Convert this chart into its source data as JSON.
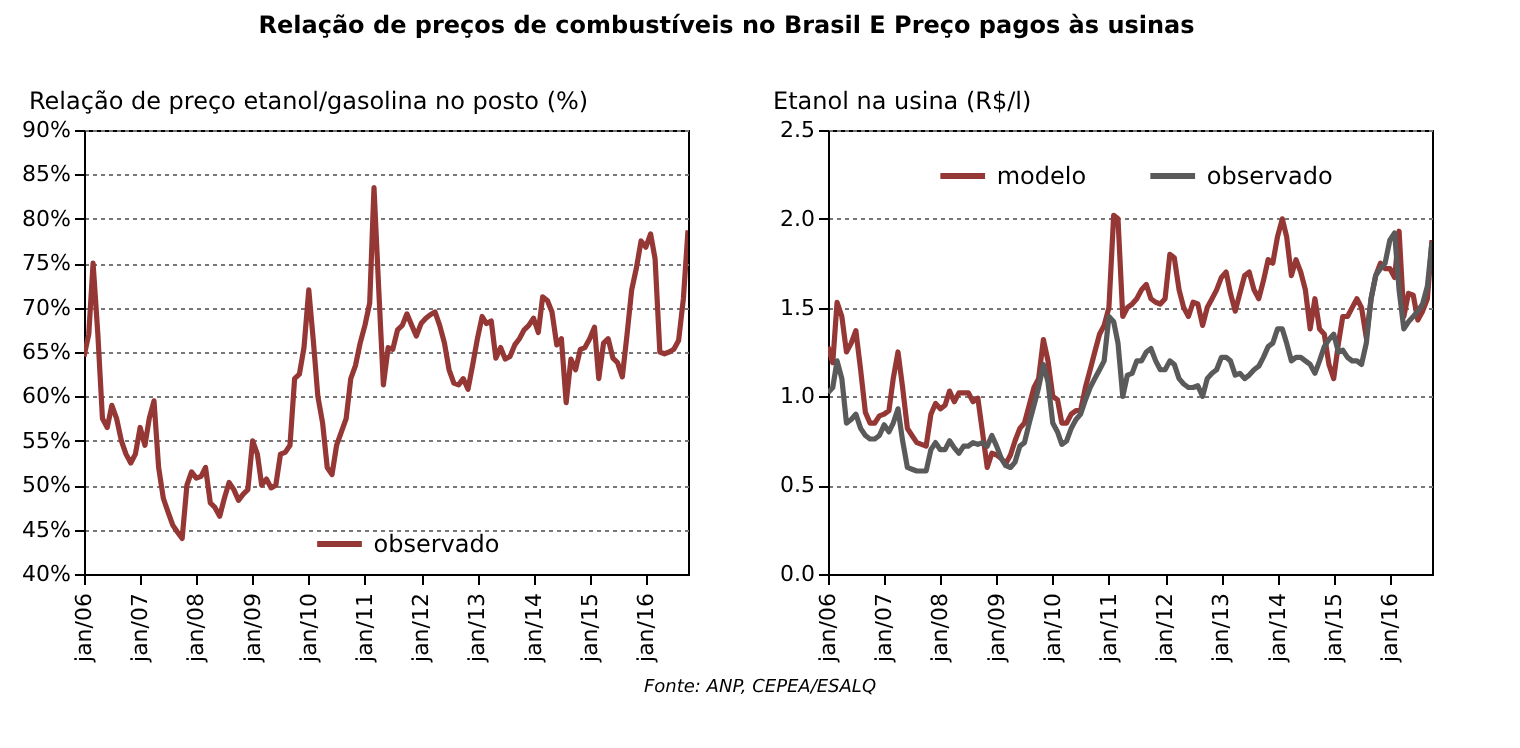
{
  "chart_data": [
    {
      "type": "line",
      "title": "Relação de preços de combustíveis no Brasil E Preço pagos às usinas",
      "ylabel": "Relação de preço etanol/gasolina  no posto (%)",
      "annotations": [
        "Fonte: ANP, CEPEA/ESALQ"
      ],
      "x": [
        "2006-01",
        "2006-02",
        "2006-03",
        "2006-04",
        "2006-05",
        "2006-06",
        "2006-07",
        "2006-08",
        "2006-09",
        "2006-10",
        "2006-11",
        "2006-12",
        "2007-01",
        "2007-02",
        "2007-03",
        "2007-04",
        "2007-05",
        "2007-06",
        "2007-07",
        "2007-08",
        "2007-09",
        "2007-10",
        "2007-11",
        "2007-12",
        "2008-01",
        "2008-02",
        "2008-03",
        "2008-04",
        "2008-05",
        "2008-06",
        "2008-07",
        "2008-08",
        "2008-09",
        "2008-10",
        "2008-11",
        "2008-12",
        "2009-01",
        "2009-02",
        "2009-03",
        "2009-04",
        "2009-05",
        "2009-06",
        "2009-07",
        "2009-08",
        "2009-09",
        "2009-10",
        "2009-11",
        "2009-12",
        "2010-01",
        "2010-02",
        "2010-03",
        "2010-04",
        "2010-05",
        "2010-06",
        "2010-07",
        "2010-08",
        "2010-09",
        "2010-10",
        "2010-11",
        "2010-12",
        "2011-01",
        "2011-02",
        "2011-03",
        "2011-04",
        "2011-05",
        "2011-06",
        "2011-07",
        "2011-08",
        "2011-09",
        "2011-10",
        "2011-11",
        "2011-12",
        "2012-01",
        "2012-02",
        "2012-03",
        "2012-04",
        "2012-05",
        "2012-06",
        "2012-07",
        "2012-08",
        "2012-09",
        "2012-10",
        "2012-11",
        "2012-12",
        "2013-01",
        "2013-02",
        "2013-03",
        "2013-04",
        "2013-05",
        "2013-06",
        "2013-07",
        "2013-08",
        "2013-09",
        "2013-10",
        "2013-11",
        "2013-12",
        "2014-01",
        "2014-02",
        "2014-03",
        "2014-04",
        "2014-05",
        "2014-06",
        "2014-07",
        "2014-08",
        "2014-09",
        "2014-10",
        "2014-11",
        "2014-12",
        "2015-01",
        "2015-02",
        "2015-03",
        "2015-04",
        "2015-05",
        "2015-06",
        "2015-07",
        "2015-08",
        "2015-09",
        "2015-10",
        "2015-11",
        "2015-12",
        "2016-01",
        "2016-02",
        "2016-03",
        "2016-04",
        "2016-05",
        "2016-06",
        "2016-07",
        "2016-08",
        "2016-09",
        "2016-10"
      ],
      "series": [
        {
          "name": "observado",
          "color": "#953735",
          "values": [
            64.5,
            67,
            75,
            67,
            57.5,
            56.5,
            59,
            57.5,
            55,
            53.5,
            52.5,
            53.5,
            56.5,
            54.5,
            57.5,
            59.5,
            52,
            48.5,
            47,
            45.5,
            44.7,
            44,
            50,
            51.5,
            50.8,
            51,
            52,
            48,
            47.5,
            46.5,
            48.5,
            50.3,
            49.5,
            48.3,
            49,
            49.5,
            55,
            53.5,
            50,
            50.7,
            49.7,
            50,
            53.5,
            53.7,
            54.5,
            62,
            62.5,
            65.5,
            72,
            66,
            60,
            57,
            52,
            51.2,
            54.5,
            56,
            57.5,
            62,
            63.5,
            66,
            68,
            70.5,
            83.5,
            72,
            61.3,
            65.5,
            65.3,
            67.5,
            68,
            69.3,
            68,
            66.8,
            68.2,
            68.8,
            69.2,
            69.5,
            68,
            66,
            63,
            61.5,
            61.3,
            62,
            60.8,
            63.5,
            66.5,
            69,
            68.2,
            68.5,
            64.3,
            65.5,
            64.2,
            64.5,
            65.8,
            66.5,
            67.5,
            68,
            68.8,
            67.2,
            71.2,
            70.8,
            69.5,
            65.8,
            66.5,
            59.3,
            64.2,
            63,
            65.3,
            65.5,
            66.5,
            67.8,
            62,
            66,
            66.5,
            64.3,
            63.8,
            62.2,
            67,
            72,
            74.5,
            77.5,
            76.8,
            78.3,
            75.5,
            65,
            64.8,
            65,
            65.3,
            66.3,
            71,
            78.7
          ]
        }
      ],
      "xlim": [
        "2006-01",
        "2016-10"
      ],
      "xticks": [
        {
          "value": "2006-01",
          "label": "jan/06"
        },
        {
          "value": "2007-01",
          "label": "jan/07"
        },
        {
          "value": "2008-01",
          "label": "jan/08"
        },
        {
          "value": "2009-01",
          "label": "jan/09"
        },
        {
          "value": "2010-01",
          "label": "jan/10"
        },
        {
          "value": "2011-01",
          "label": "jan/11"
        },
        {
          "value": "2012-01",
          "label": "jan/12"
        },
        {
          "value": "2013-01",
          "label": "jan/13"
        },
        {
          "value": "2014-01",
          "label": "jan/14"
        },
        {
          "value": "2015-01",
          "label": "jan/15"
        },
        {
          "value": "2016-01",
          "label": "jan/16"
        }
      ],
      "ylim": [
        40,
        90
      ],
      "yticks": [
        {
          "value": 40,
          "label": "40%"
        },
        {
          "value": 45,
          "label": "45%"
        },
        {
          "value": 50,
          "label": "50%"
        },
        {
          "value": 55,
          "label": "55%"
        },
        {
          "value": 60,
          "label": "60%"
        },
        {
          "value": 65,
          "label": "65%"
        },
        {
          "value": 70,
          "label": "70%"
        },
        {
          "value": 75,
          "label": "75%"
        },
        {
          "value": 80,
          "label": "80%"
        },
        {
          "value": 85,
          "label": "85%"
        },
        {
          "value": 90,
          "label": "90%"
        }
      ],
      "grid": "y",
      "legend": "bottom"
    },
    {
      "type": "line",
      "ylabel": "Etanol na usina  (R$/l)",
      "x": [
        "2006-01",
        "2006-02",
        "2006-03",
        "2006-04",
        "2006-05",
        "2006-06",
        "2006-07",
        "2006-08",
        "2006-09",
        "2006-10",
        "2006-11",
        "2006-12",
        "2007-01",
        "2007-02",
        "2007-03",
        "2007-04",
        "2007-05",
        "2007-06",
        "2007-07",
        "2007-08",
        "2007-09",
        "2007-10",
        "2007-11",
        "2007-12",
        "2008-01",
        "2008-02",
        "2008-03",
        "2008-04",
        "2008-05",
        "2008-06",
        "2008-07",
        "2008-08",
        "2008-09",
        "2008-10",
        "2008-11",
        "2008-12",
        "2009-01",
        "2009-02",
        "2009-03",
        "2009-04",
        "2009-05",
        "2009-06",
        "2009-07",
        "2009-08",
        "2009-09",
        "2009-10",
        "2009-11",
        "2009-12",
        "2010-01",
        "2010-02",
        "2010-03",
        "2010-04",
        "2010-05",
        "2010-06",
        "2010-07",
        "2010-08",
        "2010-09",
        "2010-10",
        "2010-11",
        "2010-12",
        "2011-01",
        "2011-02",
        "2011-03",
        "2011-04",
        "2011-05",
        "2011-06",
        "2011-07",
        "2011-08",
        "2011-09",
        "2011-10",
        "2011-11",
        "2011-12",
        "2012-01",
        "2012-02",
        "2012-03",
        "2012-04",
        "2012-05",
        "2012-06",
        "2012-07",
        "2012-08",
        "2012-09",
        "2012-10",
        "2012-11",
        "2012-12",
        "2013-01",
        "2013-02",
        "2013-03",
        "2013-04",
        "2013-05",
        "2013-06",
        "2013-07",
        "2013-08",
        "2013-09",
        "2013-10",
        "2013-11",
        "2013-12",
        "2014-01",
        "2014-02",
        "2014-03",
        "2014-04",
        "2014-05",
        "2014-06",
        "2014-07",
        "2014-08",
        "2014-09",
        "2014-10",
        "2014-11",
        "2014-12",
        "2015-01",
        "2015-02",
        "2015-03",
        "2015-04",
        "2015-05",
        "2015-06",
        "2015-07",
        "2015-08",
        "2015-09",
        "2015-10",
        "2015-11",
        "2015-12",
        "2016-01",
        "2016-02",
        "2016-03",
        "2016-04",
        "2016-05",
        "2016-06",
        "2016-07",
        "2016-08",
        "2016-09",
        "2016-10"
      ],
      "series": [
        {
          "name": "modelo",
          "color": "#953735",
          "values": [
            1.28,
            1.19,
            1.53,
            1.45,
            1.25,
            1.3,
            1.37,
            1.15,
            0.91,
            0.85,
            0.85,
            0.89,
            0.9,
            0.92,
            1.1,
            1.25,
            1.05,
            0.82,
            0.78,
            0.74,
            0.73,
            0.72,
            0.9,
            0.96,
            0.93,
            0.95,
            1.03,
            0.97,
            1.02,
            1.02,
            1.02,
            0.97,
            0.99,
            0.8,
            0.6,
            0.68,
            0.67,
            0.65,
            0.62,
            0.67,
            0.75,
            0.82,
            0.85,
            0.95,
            1.05,
            1.1,
            1.32,
            1.2,
            1.0,
            0.98,
            0.85,
            0.85,
            0.9,
            0.92,
            0.92,
            1.05,
            1.15,
            1.25,
            1.35,
            1.4,
            1.5,
            2.02,
            2.0,
            1.45,
            1.5,
            1.52,
            1.55,
            1.6,
            1.63,
            1.55,
            1.53,
            1.52,
            1.55,
            1.8,
            1.78,
            1.6,
            1.5,
            1.45,
            1.53,
            1.52,
            1.4,
            1.5,
            1.55,
            1.6,
            1.67,
            1.7,
            1.58,
            1.48,
            1.58,
            1.68,
            1.7,
            1.6,
            1.55,
            1.65,
            1.77,
            1.75,
            1.9,
            2.0,
            1.9,
            1.68,
            1.77,
            1.7,
            1.6,
            1.38,
            1.55,
            1.38,
            1.35,
            1.18,
            1.1,
            1.3,
            1.45,
            1.45,
            1.5,
            1.55,
            1.5,
            1.33,
            1.55,
            1.68,
            1.75,
            1.72,
            1.72,
            1.67,
            1.93,
            1.45,
            1.58,
            1.57,
            1.43,
            1.48,
            1.55,
            1.88
          ]
        },
        {
          "name": "observado",
          "color": "#5a5a5a",
          "values": [
            1.02,
            1.05,
            1.2,
            1.1,
            0.85,
            0.87,
            0.9,
            0.82,
            0.78,
            0.76,
            0.76,
            0.78,
            0.84,
            0.8,
            0.85,
            0.93,
            0.75,
            0.6,
            0.59,
            0.58,
            0.58,
            0.58,
            0.7,
            0.74,
            0.7,
            0.7,
            0.75,
            0.71,
            0.68,
            0.72,
            0.72,
            0.74,
            0.73,
            0.74,
            0.72,
            0.78,
            0.72,
            0.65,
            0.61,
            0.6,
            0.63,
            0.72,
            0.74,
            0.85,
            0.95,
            1.05,
            1.18,
            1.08,
            0.85,
            0.8,
            0.73,
            0.75,
            0.82,
            0.87,
            0.9,
            0.98,
            1.05,
            1.1,
            1.15,
            1.2,
            1.45,
            1.42,
            1.3,
            1.0,
            1.12,
            1.13,
            1.2,
            1.2,
            1.25,
            1.27,
            1.2,
            1.15,
            1.15,
            1.2,
            1.18,
            1.1,
            1.07,
            1.05,
            1.05,
            1.06,
            1.0,
            1.1,
            1.13,
            1.15,
            1.22,
            1.22,
            1.2,
            1.12,
            1.13,
            1.1,
            1.12,
            1.15,
            1.17,
            1.22,
            1.28,
            1.3,
            1.38,
            1.38,
            1.3,
            1.2,
            1.22,
            1.22,
            1.2,
            1.18,
            1.13,
            1.2,
            1.28,
            1.32,
            1.35,
            1.25,
            1.26,
            1.22,
            1.2,
            1.2,
            1.18,
            1.3,
            1.55,
            1.68,
            1.72,
            1.75,
            1.88,
            1.92,
            1.6,
            1.38,
            1.42,
            1.45,
            1.48,
            1.52,
            1.62,
            1.87
          ]
        }
      ],
      "xlim": [
        "2006-01",
        "2016-10"
      ],
      "xticks": [
        {
          "value": "2006-01",
          "label": "jan/06"
        },
        {
          "value": "2007-01",
          "label": "jan/07"
        },
        {
          "value": "2008-01",
          "label": "jan/08"
        },
        {
          "value": "2009-01",
          "label": "jan/09"
        },
        {
          "value": "2010-01",
          "label": "jan/10"
        },
        {
          "value": "2011-01",
          "label": "jan/11"
        },
        {
          "value": "2012-01",
          "label": "jan/12"
        },
        {
          "value": "2013-01",
          "label": "jan/13"
        },
        {
          "value": "2014-01",
          "label": "jan/14"
        },
        {
          "value": "2015-01",
          "label": "jan/15"
        },
        {
          "value": "2016-01",
          "label": "jan/16"
        }
      ],
      "ylim": [
        0,
        2.5
      ],
      "yticks": [
        {
          "value": 0,
          "label": "0.0"
        },
        {
          "value": 0.5,
          "label": "0.5"
        },
        {
          "value": 1,
          "label": "1.0"
        },
        {
          "value": 1.5,
          "label": "1.5"
        },
        {
          "value": 2,
          "label": "2.0"
        },
        {
          "value": 2.5,
          "label": "2.5"
        }
      ],
      "grid": "y",
      "legend": "top"
    }
  ]
}
